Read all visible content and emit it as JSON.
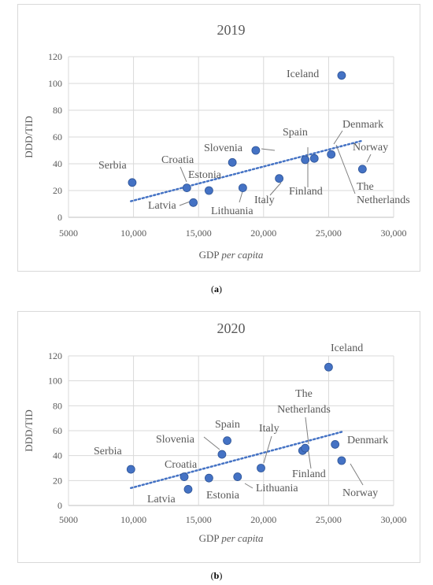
{
  "figure": {
    "captions": [
      {
        "open": "(",
        "letter": "a",
        "close": ")"
      },
      {
        "open": "(",
        "letter": "b",
        "close": ")"
      }
    ]
  },
  "chart_data": [
    {
      "type": "scatter",
      "title": "2019",
      "xlabel_main": "GDP ",
      "xlabel_italic": "per capita",
      "ylabel": "DDD/TID",
      "xlim": [
        5000,
        30000
      ],
      "ylim": [
        0,
        120
      ],
      "x_ticks": [
        5000,
        10000,
        15000,
        20000,
        25000,
        30000
      ],
      "x_tick_labels": [
        "5000",
        "10,000",
        "15,000",
        "20,000",
        "25,000",
        "30,000"
      ],
      "y_ticks": [
        0,
        20,
        40,
        60,
        80,
        100,
        120
      ],
      "grid": true,
      "marker_color": "#4472c4",
      "trend_color": "#4472c4",
      "trendline": {
        "type": "linear",
        "from": [
          9800,
          12
        ],
        "to": [
          27500,
          57
        ]
      },
      "points": [
        {
          "label": "Serbia",
          "x": 9900,
          "y": 26
        },
        {
          "label": "Croatia",
          "x": 14100,
          "y": 22
        },
        {
          "label": "Latvia",
          "x": 14600,
          "y": 11
        },
        {
          "label": "Estonia",
          "x": 15800,
          "y": 20
        },
        {
          "label": "Slovenia",
          "x": 17600,
          "y": 41
        },
        {
          "label": "Lithuania",
          "x": 18400,
          "y": 22
        },
        {
          "label": "Spain",
          "x": 19400,
          "y": 50
        },
        {
          "label": "Italy",
          "x": 21200,
          "y": 29
        },
        {
          "label": "Finland",
          "x": 23200,
          "y": 43
        },
        {
          "label": "The Netherlands",
          "x": 23900,
          "y": 44
        },
        {
          "label": "Denmark",
          "x": 25200,
          "y": 47
        },
        {
          "label": "Iceland",
          "x": 26000,
          "y": 106
        },
        {
          "label": "Norway",
          "x": 27600,
          "y": 36
        }
      ]
    },
    {
      "type": "scatter",
      "title": "2020",
      "xlabel_main": "GDP ",
      "xlabel_italic": "per capita",
      "ylabel": "DDD/TID",
      "xlim": [
        5000,
        30000
      ],
      "ylim": [
        0,
        120
      ],
      "x_ticks": [
        5000,
        10000,
        15000,
        20000,
        25000,
        30000
      ],
      "x_tick_labels": [
        "5000",
        "10,000",
        "15,000",
        "20,000",
        "25,000",
        "30,000"
      ],
      "y_ticks": [
        0,
        20,
        40,
        60,
        80,
        100,
        120
      ],
      "grid": true,
      "marker_color": "#4472c4",
      "trend_color": "#4472c4",
      "trendline": {
        "type": "linear",
        "from": [
          9800,
          14
        ],
        "to": [
          26000,
          59
        ]
      },
      "points": [
        {
          "label": "Serbia",
          "x": 9800,
          "y": 29
        },
        {
          "label": "Croatia",
          "x": 13900,
          "y": 23
        },
        {
          "label": "Latvia",
          "x": 14200,
          "y": 13
        },
        {
          "label": "Estonia",
          "x": 15800,
          "y": 22
        },
        {
          "label": "Slovenia",
          "x": 16800,
          "y": 41
        },
        {
          "label": "Spain",
          "x": 17200,
          "y": 52
        },
        {
          "label": "Lithuania",
          "x": 18000,
          "y": 23
        },
        {
          "label": "Italy",
          "x": 19800,
          "y": 30
        },
        {
          "label": "Finland",
          "x": 23000,
          "y": 44
        },
        {
          "label": "The Netherlands",
          "x": 23200,
          "y": 46
        },
        {
          "label": "Iceland",
          "x": 25000,
          "y": 111
        },
        {
          "label": "Denmark",
          "x": 25500,
          "y": 49
        },
        {
          "label": "Norway",
          "x": 26000,
          "y": 36
        }
      ]
    }
  ]
}
